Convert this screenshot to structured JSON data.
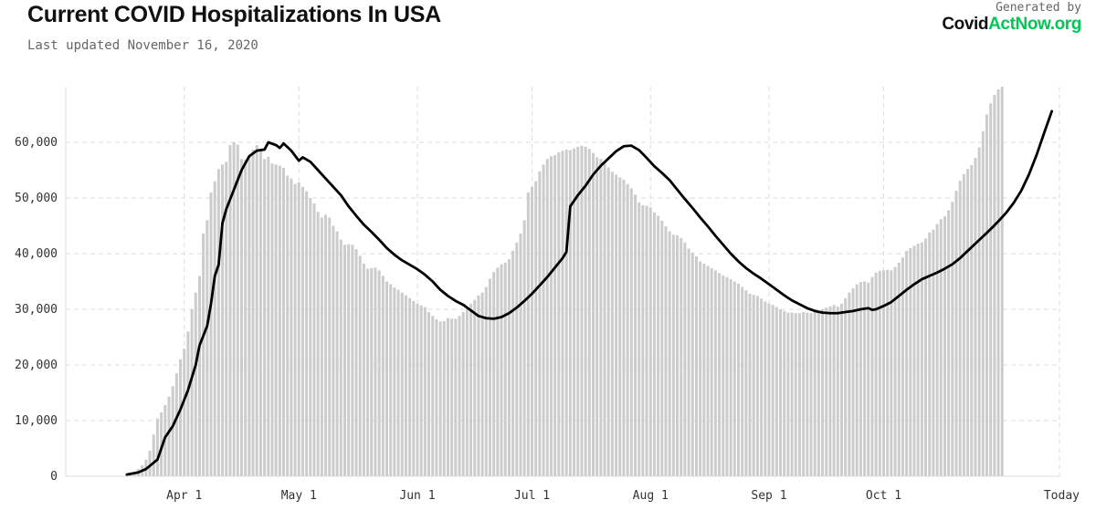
{
  "header": {
    "title": "Current COVID Hospitalizations In USA",
    "subtitle": "Last updated November 16, 2020"
  },
  "branding": {
    "generated_by": "Generated by",
    "logo_part1": "Covid",
    "logo_part2": "ActNow.org"
  },
  "colors": {
    "bars": "#cccccc",
    "line": "#000000",
    "grid": "#dddddd",
    "brand_green": "#00c853"
  },
  "chart_data": {
    "type": "bar",
    "title": "Current COVID Hospitalizations In USA",
    "xlabel": "",
    "ylabel": "",
    "ylim": [
      0,
      70000
    ],
    "y_ticks": [
      0,
      10000,
      20000,
      30000,
      40000,
      50000,
      60000
    ],
    "y_tick_labels": [
      "0",
      "10,000",
      "20,000",
      "30,000",
      "40,000",
      "50,000",
      "60,000"
    ],
    "x_tick_labels": [
      {
        "date": "2020-04-01",
        "label": "Apr 1"
      },
      {
        "date": "2020-05-01",
        "label": "May 1"
      },
      {
        "date": "2020-06-01",
        "label": "Jun 1"
      },
      {
        "date": "2020-07-01",
        "label": "Jul 1"
      },
      {
        "date": "2020-08-01",
        "label": "Aug 1"
      },
      {
        "date": "2020-09-01",
        "label": "Sep 1"
      },
      {
        "date": "2020-10-01",
        "label": "Oct 1"
      },
      {
        "date": "2020-11-16",
        "label": "Today"
      }
    ],
    "xlim": [
      "2020-03-01",
      "2020-11-16"
    ],
    "grid": true,
    "series": [
      {
        "kind": "bar",
        "start_date": "2020-03-17",
        "values": [
          100,
          300,
          700,
          1300,
          2000,
          3000,
          4600,
          7500,
          10400,
          11500,
          12800,
          14300,
          16200,
          18500,
          21000,
          22900,
          26000,
          30000,
          33000,
          36000,
          43600,
          46000,
          51000,
          53000,
          55200,
          56000,
          56500,
          59500,
          60000,
          59600,
          57000,
          56900,
          57500,
          58700,
          59500,
          58500,
          57000,
          57400,
          56200,
          56000,
          55800,
          55400,
          54000,
          53500,
          52500,
          52800,
          52000,
          51200,
          50000,
          49000,
          47500,
          46500,
          47000,
          46500,
          45000,
          44000,
          42500,
          41600,
          41700,
          41600,
          40800,
          39600,
          38200,
          37300,
          37400,
          37500,
          37000,
          36000,
          35000,
          34500,
          33900,
          33500,
          33000,
          32500,
          32000,
          31500,
          31000,
          30700,
          30400,
          29500,
          28800,
          28200,
          27800,
          27900,
          28400,
          28300,
          28300,
          28800,
          29500,
          30200,
          31000,
          31700,
          32500,
          33000,
          34000,
          35500,
          36700,
          37500,
          38100,
          38400,
          39000,
          40500,
          42000,
          43600,
          46000,
          51000,
          52000,
          53000,
          54800,
          56000,
          57000,
          57500,
          57700,
          58200,
          58500,
          58700,
          58600,
          58900,
          59200,
          59400,
          59200,
          58800,
          58100,
          57300,
          57000,
          56400,
          55500,
          54700,
          54200,
          53700,
          53300,
          52500,
          51700,
          50600,
          49200,
          48700,
          48600,
          48300,
          47400,
          46800,
          45900,
          44900,
          44000,
          43400,
          43300,
          42800,
          42000,
          40900,
          40200,
          39500,
          38600,
          38200,
          37800,
          37400,
          37000,
          36500,
          36100,
          35800,
          35400,
          35000,
          34600,
          34000,
          33400,
          32800,
          32600,
          32400,
          31900,
          31400,
          31000,
          30800,
          30400,
          30000,
          29700,
          29400,
          29400,
          29300,
          29300,
          29500,
          29400,
          29300,
          29500,
          29700,
          30000,
          30300,
          30500,
          30800,
          30500,
          31000,
          32000,
          33000,
          33800,
          34500,
          34900,
          35000,
          34800,
          35800,
          36600,
          36900,
          37000,
          37100,
          37000,
          37600,
          38400,
          39300,
          40500,
          41000,
          41400,
          41800,
          42000,
          42700,
          43800,
          44300,
          45300,
          46200,
          46700,
          47800,
          49300,
          51300,
          53100,
          54300,
          55200,
          55900,
          57200,
          59100,
          62000,
          65000,
          67000,
          68500,
          69500,
          70000
        ]
      },
      {
        "kind": "line",
        "name": "",
        "points": [
          [
            "2020-03-17",
            300
          ],
          [
            "2020-03-20",
            700
          ],
          [
            "2020-03-22",
            1300
          ],
          [
            "2020-03-25",
            3000
          ],
          [
            "2020-03-26",
            5000
          ],
          [
            "2020-03-27",
            7000
          ],
          [
            "2020-03-29",
            9000
          ],
          [
            "2020-03-31",
            12000
          ],
          [
            "2020-04-02",
            15500
          ],
          [
            "2020-04-04",
            20000
          ],
          [
            "2020-04-05",
            23500
          ],
          [
            "2020-04-07",
            27000
          ],
          [
            "2020-04-08",
            31000
          ],
          [
            "2020-04-09",
            36000
          ],
          [
            "2020-04-10",
            38000
          ],
          [
            "2020-04-11",
            45500
          ],
          [
            "2020-04-12",
            48000
          ],
          [
            "2020-04-14",
            51500
          ],
          [
            "2020-04-16",
            55000
          ],
          [
            "2020-04-18",
            57500
          ],
          [
            "2020-04-20",
            58500
          ],
          [
            "2020-04-22",
            58700
          ],
          [
            "2020-04-23",
            60000
          ],
          [
            "2020-04-25",
            59500
          ],
          [
            "2020-04-26",
            59000
          ],
          [
            "2020-04-27",
            59800
          ],
          [
            "2020-04-29",
            58500
          ],
          [
            "2020-05-01",
            56700
          ],
          [
            "2020-05-02",
            57300
          ],
          [
            "2020-05-04",
            56500
          ],
          [
            "2020-05-06",
            55000
          ],
          [
            "2020-05-08",
            53500
          ],
          [
            "2020-05-10",
            52000
          ],
          [
            "2020-05-12",
            50500
          ],
          [
            "2020-05-14",
            48500
          ],
          [
            "2020-05-16",
            46800
          ],
          [
            "2020-05-18",
            45200
          ],
          [
            "2020-05-20",
            43900
          ],
          [
            "2020-05-22",
            42500
          ],
          [
            "2020-05-24",
            41000
          ],
          [
            "2020-05-26",
            39800
          ],
          [
            "2020-05-28",
            38800
          ],
          [
            "2020-05-30",
            38000
          ],
          [
            "2020-06-01",
            37200
          ],
          [
            "2020-06-03",
            36200
          ],
          [
            "2020-06-05",
            35000
          ],
          [
            "2020-06-07",
            33500
          ],
          [
            "2020-06-09",
            32400
          ],
          [
            "2020-06-11",
            31500
          ],
          [
            "2020-06-13",
            30800
          ],
          [
            "2020-06-15",
            29800
          ],
          [
            "2020-06-17",
            28800
          ],
          [
            "2020-06-19",
            28400
          ],
          [
            "2020-06-21",
            28300
          ],
          [
            "2020-06-23",
            28600
          ],
          [
            "2020-06-25",
            29300
          ],
          [
            "2020-06-27",
            30300
          ],
          [
            "2020-06-29",
            31500
          ],
          [
            "2020-07-01",
            32800
          ],
          [
            "2020-07-03",
            34300
          ],
          [
            "2020-07-05",
            35800
          ],
          [
            "2020-07-07",
            37500
          ],
          [
            "2020-07-09",
            39200
          ],
          [
            "2020-07-10",
            40300
          ],
          [
            "2020-07-11",
            48500
          ],
          [
            "2020-07-13",
            50500
          ],
          [
            "2020-07-15",
            52200
          ],
          [
            "2020-07-17",
            54200
          ],
          [
            "2020-07-19",
            55800
          ],
          [
            "2020-07-21",
            57100
          ],
          [
            "2020-07-23",
            58400
          ],
          [
            "2020-07-25",
            59300
          ],
          [
            "2020-07-27",
            59400
          ],
          [
            "2020-07-29",
            58600
          ],
          [
            "2020-07-31",
            57200
          ],
          [
            "2020-08-02",
            55700
          ],
          [
            "2020-08-04",
            54500
          ],
          [
            "2020-08-06",
            53200
          ],
          [
            "2020-08-08",
            51500
          ],
          [
            "2020-08-10",
            49800
          ],
          [
            "2020-08-12",
            48200
          ],
          [
            "2020-08-14",
            46500
          ],
          [
            "2020-08-16",
            44900
          ],
          [
            "2020-08-18",
            43200
          ],
          [
            "2020-08-20",
            41600
          ],
          [
            "2020-08-22",
            40000
          ],
          [
            "2020-08-24",
            38600
          ],
          [
            "2020-08-26",
            37400
          ],
          [
            "2020-08-28",
            36400
          ],
          [
            "2020-08-30",
            35500
          ],
          [
            "2020-09-01",
            34500
          ],
          [
            "2020-09-03",
            33500
          ],
          [
            "2020-09-05",
            32500
          ],
          [
            "2020-09-07",
            31600
          ],
          [
            "2020-09-09",
            30900
          ],
          [
            "2020-09-11",
            30200
          ],
          [
            "2020-09-13",
            29700
          ],
          [
            "2020-09-15",
            29400
          ],
          [
            "2020-09-17",
            29300
          ],
          [
            "2020-09-19",
            29300
          ],
          [
            "2020-09-21",
            29500
          ],
          [
            "2020-09-23",
            29700
          ],
          [
            "2020-09-25",
            30000
          ],
          [
            "2020-09-27",
            30200
          ],
          [
            "2020-09-28",
            29900
          ],
          [
            "2020-09-29",
            30000
          ],
          [
            "2020-10-01",
            30600
          ],
          [
            "2020-10-03",
            31300
          ],
          [
            "2020-10-05",
            32400
          ],
          [
            "2020-10-07",
            33500
          ],
          [
            "2020-10-09",
            34500
          ],
          [
            "2020-10-11",
            35400
          ],
          [
            "2020-10-13",
            36000
          ],
          [
            "2020-10-15",
            36600
          ],
          [
            "2020-10-17",
            37300
          ],
          [
            "2020-10-19",
            38100
          ],
          [
            "2020-10-21",
            39200
          ],
          [
            "2020-10-23",
            40500
          ],
          [
            "2020-10-25",
            41800
          ],
          [
            "2020-10-27",
            43100
          ],
          [
            "2020-10-29",
            44400
          ],
          [
            "2020-10-31",
            45800
          ],
          [
            "2020-11-02",
            47300
          ],
          [
            "2020-11-04",
            49100
          ],
          [
            "2020-11-06",
            51300
          ],
          [
            "2020-11-08",
            54200
          ],
          [
            "2020-11-10",
            57700
          ],
          [
            "2020-11-12",
            61700
          ],
          [
            "2020-11-14",
            65600
          ]
        ]
      }
    ]
  }
}
